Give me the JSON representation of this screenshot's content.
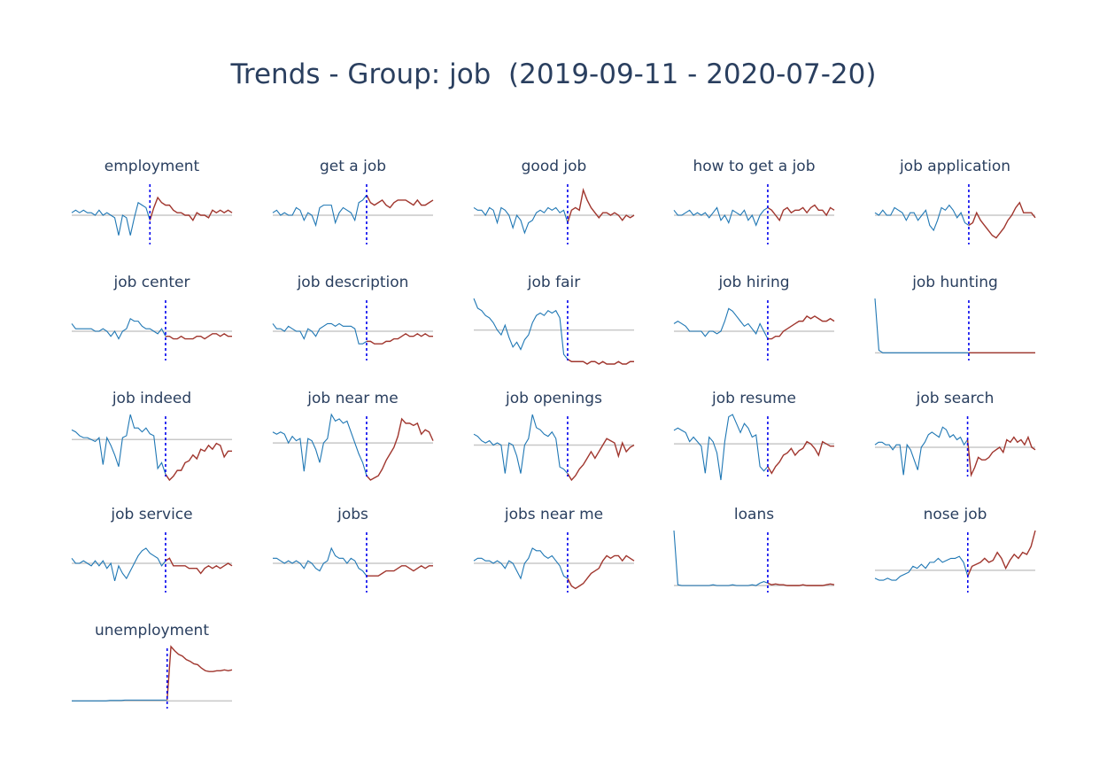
{
  "title": "Trends - Group: job  (2019-09-11 - 2020-07-20)",
  "colors": {
    "before": "#1f77b4",
    "after": "#a0362e",
    "baseline": "#c8c8c8",
    "marker": "#0000ee",
    "text": "#2a3f5f"
  },
  "chart_data": [
    {
      "type": "line",
      "title": "employment",
      "split_index": 20,
      "values": [
        0.1,
        0.2,
        0.1,
        0.2,
        0.1,
        0.1,
        0,
        0.2,
        0,
        0.1,
        0,
        -0.1,
        -0.8,
        0,
        -0.1,
        -0.8,
        -0.1,
        0.5,
        0.4,
        0.3,
        -0.2,
        0.3,
        0.7,
        0.5,
        0.4,
        0.4,
        0.2,
        0.1,
        0.1,
        0,
        0,
        -0.2,
        0.1,
        0,
        0,
        -0.1,
        0.2,
        0.1,
        0.2,
        0.1,
        0.2,
        0.1
      ]
    },
    {
      "type": "line",
      "title": "get a job",
      "values": [
        0.1,
        0.2,
        0,
        0.1,
        0,
        0,
        0.3,
        0.2,
        -0.2,
        0.1,
        0,
        -0.4,
        0.3,
        0.4,
        0.4,
        0.4,
        -0.3,
        0.1,
        0.3,
        0.2,
        0.1,
        -0.2,
        0.5,
        0.6,
        0.8,
        0.5,
        0.4,
        0.5,
        0.6,
        0.4,
        0.3,
        0.5,
        0.6,
        0.6,
        0.6,
        0.5,
        0.4,
        0.6,
        0.4,
        0.4,
        0.5,
        0.6
      ]
    },
    {
      "type": "line",
      "title": "good job",
      "values": [
        0.3,
        0.2,
        0.2,
        0,
        0.3,
        0.2,
        -0.3,
        0.3,
        0.2,
        0,
        -0.5,
        0,
        -0.2,
        -0.7,
        -0.3,
        -0.2,
        0.1,
        0.2,
        0.1,
        0.3,
        0.2,
        0.3,
        0.1,
        0.2,
        -0.3,
        0.2,
        0.3,
        0.2,
        1,
        0.6,
        0.3,
        0.1,
        -0.1,
        0.1,
        0.1,
        0,
        0.1,
        0,
        -0.2,
        0,
        -0.1,
        0
      ]
    },
    {
      "type": "line",
      "title": "how to get a job",
      "values": [
        0.2,
        0,
        0,
        0.1,
        0.2,
        0,
        0.1,
        0,
        0.1,
        -0.1,
        0.1,
        0.3,
        -0.2,
        0,
        -0.3,
        0.2,
        0.1,
        0,
        0.2,
        -0.2,
        0,
        -0.4,
        0,
        0.2,
        0.3,
        0.2,
        0,
        -0.2,
        0.2,
        0.3,
        0.1,
        0.2,
        0.2,
        0.3,
        0.1,
        0.3,
        0.4,
        0.2,
        0.2,
        0,
        0.3,
        0.2
      ]
    },
    {
      "type": "line",
      "title": "job application",
      "values": [
        0.1,
        0,
        0.2,
        0,
        0,
        0.3,
        0.2,
        0.1,
        -0.2,
        0.1,
        0.1,
        -0.2,
        0,
        0.2,
        -0.4,
        -0.6,
        -0.2,
        0.3,
        0.2,
        0.4,
        0.2,
        -0.1,
        0.1,
        -0.3,
        -0.4,
        -0.3,
        0.1,
        -0.2,
        -0.4,
        -0.6,
        -0.8,
        -0.9,
        -0.7,
        -0.5,
        -0.2,
        0,
        0.3,
        0.5,
        0.1,
        0.1,
        0.1,
        -0.1
      ]
    },
    {
      "type": "line",
      "title": "job center",
      "values": [
        0.3,
        0.1,
        0.1,
        0.1,
        0.1,
        0.1,
        0,
        0,
        0.1,
        0,
        -0.2,
        0,
        -0.3,
        0,
        0.1,
        0.5,
        0.4,
        0.4,
        0.2,
        0.1,
        0.1,
        0,
        -0.1,
        0.1,
        -0.2,
        -0.2,
        -0.3,
        -0.3,
        -0.2,
        -0.3,
        -0.3,
        -0.3,
        -0.2,
        -0.2,
        -0.3,
        -0.2,
        -0.1,
        -0.1,
        -0.2,
        -0.1,
        -0.2,
        -0.2
      ]
    },
    {
      "type": "line",
      "title": "job description",
      "values": [
        0.3,
        0.1,
        0.1,
        0,
        0.2,
        0.1,
        0,
        0,
        -0.3,
        0.1,
        0,
        -0.2,
        0.1,
        0.2,
        0.3,
        0.3,
        0.2,
        0.3,
        0.2,
        0.2,
        0.2,
        0.1,
        -0.5,
        -0.5,
        -0.4,
        -0.4,
        -0.5,
        -0.5,
        -0.5,
        -0.4,
        -0.4,
        -0.3,
        -0.3,
        -0.2,
        -0.1,
        -0.2,
        -0.2,
        -0.1,
        -0.2,
        -0.1,
        -0.2,
        -0.2
      ]
    },
    {
      "type": "line",
      "title": "job fair",
      "values": [
        1.3,
        0.9,
        0.8,
        0.6,
        0.5,
        0.3,
        0,
        -0.2,
        0.2,
        -0.3,
        -0.7,
        -0.5,
        -0.8,
        -0.4,
        -0.2,
        0.3,
        0.6,
        0.7,
        0.6,
        0.8,
        0.7,
        0.8,
        0.5,
        -1,
        -1.2,
        -1.3,
        -1.3,
        -1.3,
        -1.3,
        -1.4,
        -1.3,
        -1.3,
        -1.4,
        -1.3,
        -1.4,
        -1.4,
        -1.4,
        -1.3,
        -1.4,
        -1.4,
        -1.3,
        -1.3
      ]
    },
    {
      "type": "line",
      "title": "job hiring",
      "values": [
        0.3,
        0.4,
        0.3,
        0.2,
        0,
        0,
        0,
        0,
        -0.2,
        0,
        0,
        -0.1,
        0,
        0.4,
        0.9,
        0.8,
        0.6,
        0.4,
        0.2,
        0.3,
        0.1,
        -0.1,
        0.3,
        0,
        -0.3,
        -0.3,
        -0.2,
        -0.2,
        0,
        0.1,
        0.2,
        0.3,
        0.4,
        0.4,
        0.6,
        0.5,
        0.6,
        0.5,
        0.4,
        0.4,
        0.5,
        0.4
      ]
    },
    {
      "type": "line",
      "title": "job hunting",
      "values": [
        6.3,
        0.3,
        0,
        0,
        0,
        0,
        0,
        0,
        0,
        0,
        0,
        0,
        0,
        0,
        0,
        0,
        0,
        0,
        0,
        0,
        0,
        0,
        0,
        0,
        0,
        0,
        0,
        0,
        0,
        0,
        0,
        0,
        0,
        0,
        0,
        0,
        0,
        0,
        0,
        0,
        0,
        0
      ]
    },
    {
      "type": "line",
      "title": "job indeed",
      "values": [
        0.5,
        0.4,
        0.2,
        0.1,
        0.1,
        0,
        -0.1,
        0.1,
        -1.3,
        0.1,
        -0.3,
        -0.8,
        -1.4,
        0.1,
        0.2,
        1.3,
        0.6,
        0.6,
        0.4,
        0.6,
        0.3,
        0.2,
        -1.5,
        -1.2,
        -1.8,
        -2.1,
        -1.9,
        -1.6,
        -1.6,
        -1.2,
        -1.1,
        -0.8,
        -1,
        -0.5,
        -0.6,
        -0.3,
        -0.5,
        -0.2,
        -0.3,
        -0.9,
        -0.6,
        -0.6
      ]
    },
    {
      "type": "line",
      "title": "job near me",
      "values": [
        0.5,
        0.4,
        0.5,
        0.4,
        0,
        0.3,
        0.1,
        0.2,
        -1.3,
        0.2,
        0.1,
        -0.3,
        -0.9,
        0,
        0.2,
        1.3,
        1,
        1.1,
        0.9,
        1,
        0.5,
        0,
        -0.5,
        -0.9,
        -1.5,
        -1.7,
        -1.6,
        -1.5,
        -1.2,
        -0.8,
        -0.5,
        -0.2,
        0.3,
        1.1,
        0.9,
        0.9,
        0.8,
        0.9,
        0.4,
        0.6,
        0.5,
        0.1
      ]
    },
    {
      "type": "line",
      "title": "job openings",
      "values": [
        0.5,
        0.4,
        0.2,
        0.1,
        0.2,
        0,
        0.1,
        0,
        -1.3,
        0.1,
        0,
        -0.5,
        -1.3,
        0,
        0.3,
        1.4,
        0.8,
        0.7,
        0.5,
        0.4,
        0.6,
        0.3,
        -1,
        -1.1,
        -1.3,
        -1.6,
        -1.4,
        -1.1,
        -0.9,
        -0.6,
        -0.3,
        -0.6,
        -0.3,
        0,
        0.3,
        0.2,
        0.1,
        -0.5,
        0.1,
        -0.3,
        -0.1,
        0
      ]
    },
    {
      "type": "line",
      "title": "job resume",
      "values": [
        0.6,
        0.7,
        0.6,
        0.5,
        0.1,
        0.3,
        0.1,
        -0.1,
        -1.3,
        0.3,
        0.1,
        -0.4,
        -1.6,
        0.1,
        1.2,
        1.3,
        0.9,
        0.5,
        0.9,
        0.7,
        0.3,
        0.4,
        -1,
        -1.2,
        -1,
        -1.3,
        -1,
        -0.8,
        -0.5,
        -0.4,
        -0.2,
        -0.5,
        -0.3,
        -0.2,
        0.1,
        0,
        -0.2,
        -0.5,
        0.1,
        0,
        -0.1,
        -0.1
      ]
    },
    {
      "type": "line",
      "title": "job search",
      "values": [
        0.1,
        0.2,
        0.2,
        0.1,
        0.1,
        -0.1,
        0.1,
        0.1,
        -1.1,
        0.1,
        -0.1,
        -0.5,
        -0.9,
        0,
        0.2,
        0.5,
        0.6,
        0.5,
        0.4,
        0.8,
        0.7,
        0.4,
        0.5,
        0.3,
        0.4,
        0.1,
        0.3,
        -1.1,
        -0.8,
        -0.4,
        -0.5,
        -0.5,
        -0.4,
        -0.2,
        -0.1,
        0,
        -0.2,
        0.3,
        0.2,
        0.4,
        0.2,
        0.3,
        0.1,
        0.4,
        0,
        -0.1
      ]
    },
    {
      "type": "line",
      "title": "job service",
      "values": [
        0.2,
        0,
        0,
        0.1,
        0,
        -0.1,
        0.1,
        -0.1,
        0.1,
        -0.2,
        0,
        -0.7,
        -0.1,
        -0.4,
        -0.6,
        -0.3,
        0,
        0.3,
        0.5,
        0.6,
        0.4,
        0.3,
        0.2,
        -0.1,
        0.1,
        0.2,
        -0.1,
        -0.1,
        -0.1,
        -0.1,
        -0.2,
        -0.2,
        -0.2,
        -0.4,
        -0.2,
        -0.1,
        -0.2,
        -0.1,
        -0.2,
        -0.1,
        0,
        -0.1
      ]
    },
    {
      "type": "line",
      "title": "jobs",
      "values": [
        0.2,
        0.2,
        0.1,
        0,
        0.1,
        0,
        0.1,
        0,
        -0.2,
        0.1,
        0,
        -0.2,
        -0.3,
        0,
        0.1,
        0.6,
        0.3,
        0.2,
        0.2,
        0,
        0.2,
        0.1,
        -0.2,
        -0.3,
        -0.5,
        -0.5,
        -0.5,
        -0.5,
        -0.4,
        -0.3,
        -0.3,
        -0.3,
        -0.2,
        -0.1,
        -0.1,
        -0.2,
        -0.3,
        -0.2,
        -0.1,
        -0.2,
        -0.1,
        -0.1
      ]
    },
    {
      "type": "line",
      "title": "jobs near me",
      "values": [
        0.1,
        0.2,
        0.2,
        0.1,
        0.1,
        0,
        0.1,
        0,
        -0.2,
        0.1,
        0,
        -0.3,
        -0.6,
        0,
        0.2,
        0.6,
        0.5,
        0.5,
        0.3,
        0.2,
        0.3,
        0.1,
        -0.1,
        -0.5,
        -0.6,
        -0.9,
        -1,
        -0.9,
        -0.8,
        -0.6,
        -0.4,
        -0.3,
        -0.2,
        0.1,
        0.3,
        0.2,
        0.3,
        0.3,
        0.1,
        0.3,
        0.2,
        0.1
      ]
    },
    {
      "type": "line",
      "title": "loans",
      "values": [
        6.8,
        0.1,
        0,
        0,
        0,
        0,
        0,
        0,
        0,
        0,
        0.1,
        0,
        0,
        0,
        0,
        0.1,
        0,
        0,
        0,
        0,
        0.1,
        0,
        0.3,
        0.5,
        0.3,
        0.1,
        0.2,
        0.1,
        0.1,
        0,
        0,
        0,
        0,
        0.1,
        0,
        0,
        0,
        0,
        0,
        0.1,
        0.2,
        0.1
      ]
    },
    {
      "type": "line",
      "title": "nose job",
      "values": [
        -0.4,
        -0.5,
        -0.5,
        -0.4,
        -0.5,
        -0.5,
        -0.3,
        -0.2,
        -0.1,
        0.2,
        0.1,
        0.3,
        0.1,
        0.4,
        0.4,
        0.6,
        0.4,
        0.5,
        0.6,
        0.6,
        0.7,
        0.4,
        -0.3,
        0.2,
        0.3,
        0.4,
        0.6,
        0.4,
        0.5,
        0.9,
        0.6,
        0.1,
        0.5,
        0.8,
        0.6,
        0.9,
        0.8,
        1.2,
        2
      ]
    },
    {
      "type": "line",
      "title": "unemployment",
      "values": [
        0,
        0,
        0,
        0,
        0,
        0,
        0,
        0,
        0,
        0,
        0.05,
        0.05,
        0.05,
        0.05,
        0.1,
        0.1,
        0.1,
        0.1,
        0.1,
        0.1,
        0.1,
        0.1,
        0.1,
        0.1,
        0.1,
        0.1,
        6.3,
        5.8,
        5.4,
        5.2,
        4.8,
        4.6,
        4.3,
        4.2,
        3.8,
        3.5,
        3.4,
        3.4,
        3.5,
        3.5,
        3.6,
        3.5,
        3.6
      ]
    }
  ]
}
